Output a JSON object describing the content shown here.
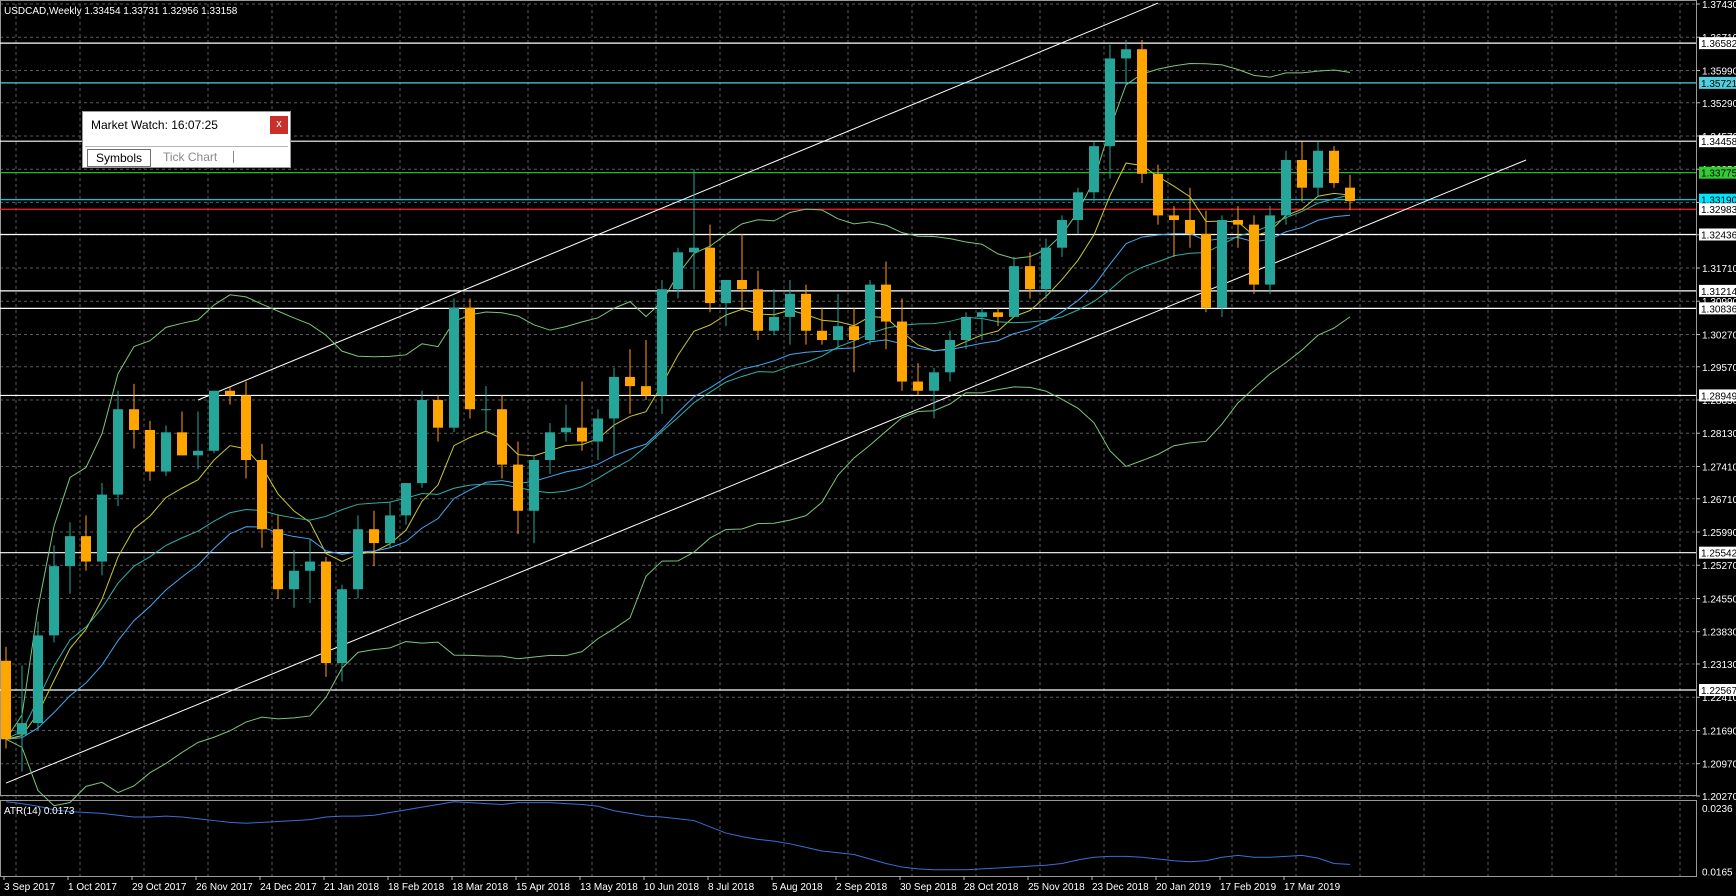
{
  "chart_data": [
    {
      "type": "candlestick",
      "symbol": "USDCAD,Weekly",
      "title_ohlc": "1.33454 1.33731 1.32956 1.33158",
      "ylim": [
        1.2027,
        1.3743
      ],
      "y_ticks": [
        "1.37430",
        "1.36710",
        "1.35990",
        "1.35290",
        "1.34570",
        "1.33850",
        "1.33130",
        "1.32430",
        "1.31710",
        "1.30990",
        "1.30270",
        "1.29570",
        "1.28850",
        "1.28130",
        "1.27410",
        "1.26710",
        "1.25990",
        "1.25270",
        "1.24550",
        "1.23830",
        "1.23130",
        "1.22410",
        "1.21690",
        "1.20970",
        "1.20270"
      ],
      "y_tick_values": [
        1.3743,
        1.3671,
        1.3599,
        1.3529,
        1.3457,
        1.3385,
        1.3313,
        1.3243,
        1.3171,
        1.3099,
        1.3027,
        1.2957,
        1.2885,
        1.2813,
        1.2741,
        1.2671,
        1.2599,
        1.2527,
        1.2455,
        1.2383,
        1.2313,
        1.2241,
        1.2169,
        1.2097,
        1.2027
      ],
      "x_tick_labels": [
        "3 Sep 2017",
        "1 Oct 2017",
        "29 Oct 2017",
        "26 Nov 2017",
        "24 Dec 2017",
        "21 Jan 2018",
        "18 Feb 2018",
        "18 Mar 2018",
        "15 Apr 2018",
        "13 May 2018",
        "10 Jun 2018",
        "8 Jul 2018",
        "5 Aug 2018",
        "2 Sep 2018",
        "30 Sep 2018",
        "28 Oct 2018",
        "25 Nov 2018",
        "23 Dec 2018",
        "20 Jan 2019",
        "17 Feb 2019",
        "17 Mar 2019"
      ],
      "candles": [
        {
          "o": 1.232,
          "h": 1.235,
          "l": 1.213,
          "c": 1.215
        },
        {
          "o": 1.216,
          "h": 1.231,
          "l": 1.208,
          "c": 1.2185
        },
        {
          "o": 1.2185,
          "h": 1.2405,
          "l": 1.217,
          "c": 1.2375
        },
        {
          "o": 1.2375,
          "h": 1.257,
          "l": 1.236,
          "c": 1.2525
        },
        {
          "o": 1.2525,
          "h": 1.262,
          "l": 1.2465,
          "c": 1.259
        },
        {
          "o": 1.259,
          "h": 1.2635,
          "l": 1.2515,
          "c": 1.2535
        },
        {
          "o": 1.2535,
          "h": 1.2705,
          "l": 1.2505,
          "c": 1.268
        },
        {
          "o": 1.268,
          "h": 1.2905,
          "l": 1.2655,
          "c": 1.2865
        },
        {
          "o": 1.2865,
          "h": 1.292,
          "l": 1.278,
          "c": 1.282
        },
        {
          "o": 1.282,
          "h": 1.284,
          "l": 1.271,
          "c": 1.273
        },
        {
          "o": 1.273,
          "h": 1.283,
          "l": 1.272,
          "c": 1.2815
        },
        {
          "o": 1.2815,
          "h": 1.286,
          "l": 1.2765,
          "c": 1.2765
        },
        {
          "o": 1.2765,
          "h": 1.286,
          "l": 1.2735,
          "c": 1.2775
        },
        {
          "o": 1.2775,
          "h": 1.2895,
          "l": 1.277,
          "c": 1.2905
        },
        {
          "o": 1.2905,
          "h": 1.2915,
          "l": 1.2875,
          "c": 1.2895
        },
        {
          "o": 1.2895,
          "h": 1.2925,
          "l": 1.2715,
          "c": 1.2755
        },
        {
          "o": 1.2755,
          "h": 1.279,
          "l": 1.2565,
          "c": 1.2605
        },
        {
          "o": 1.2605,
          "h": 1.2635,
          "l": 1.2455,
          "c": 1.2475
        },
        {
          "o": 1.2475,
          "h": 1.256,
          "l": 1.2435,
          "c": 1.2515
        },
        {
          "o": 1.2515,
          "h": 1.2585,
          "l": 1.2445,
          "c": 1.2535
        },
        {
          "o": 1.2535,
          "h": 1.2545,
          "l": 1.2285,
          "c": 1.2315
        },
        {
          "o": 1.2315,
          "h": 1.2485,
          "l": 1.2275,
          "c": 1.2475
        },
        {
          "o": 1.2475,
          "h": 1.2635,
          "l": 1.2455,
          "c": 1.2605
        },
        {
          "o": 1.2605,
          "h": 1.2645,
          "l": 1.2525,
          "c": 1.2575
        },
        {
          "o": 1.2575,
          "h": 1.2665,
          "l": 1.2565,
          "c": 1.2635
        },
        {
          "o": 1.2635,
          "h": 1.2705,
          "l": 1.2615,
          "c": 1.2705
        },
        {
          "o": 1.2705,
          "h": 1.2905,
          "l": 1.2695,
          "c": 1.2885
        },
        {
          "o": 1.2885,
          "h": 1.2895,
          "l": 1.2795,
          "c": 1.2825
        },
        {
          "o": 1.2825,
          "h": 1.3105,
          "l": 1.2815,
          "c": 1.3085
        },
        {
          "o": 1.3085,
          "h": 1.3105,
          "l": 1.2845,
          "c": 1.2865
        },
        {
          "o": 1.2865,
          "h": 1.2915,
          "l": 1.2815,
          "c": 1.2865
        },
        {
          "o": 1.2865,
          "h": 1.2895,
          "l": 1.2715,
          "c": 1.2745
        },
        {
          "o": 1.2745,
          "h": 1.2795,
          "l": 1.2595,
          "c": 1.2645
        },
        {
          "o": 1.2645,
          "h": 1.2765,
          "l": 1.2575,
          "c": 1.2755
        },
        {
          "o": 1.2755,
          "h": 1.2835,
          "l": 1.2725,
          "c": 1.2815
        },
        {
          "o": 1.2815,
          "h": 1.2875,
          "l": 1.2795,
          "c": 1.2825
        },
        {
          "o": 1.2825,
          "h": 1.2925,
          "l": 1.2775,
          "c": 1.2795
        },
        {
          "o": 1.2795,
          "h": 1.2865,
          "l": 1.2755,
          "c": 1.2845
        },
        {
          "o": 1.2845,
          "h": 1.2955,
          "l": 1.2765,
          "c": 1.2935
        },
        {
          "o": 1.2935,
          "h": 1.2995,
          "l": 1.2855,
          "c": 1.2915
        },
        {
          "o": 1.2915,
          "h": 1.3015,
          "l": 1.2885,
          "c": 1.2895
        },
        {
          "o": 1.2895,
          "h": 1.3145,
          "l": 1.2855,
          "c": 1.3125
        },
        {
          "o": 1.3125,
          "h": 1.3215,
          "l": 1.3105,
          "c": 1.3205
        },
        {
          "o": 1.3205,
          "h": 1.3385,
          "l": 1.3125,
          "c": 1.3215
        },
        {
          "o": 1.3215,
          "h": 1.3265,
          "l": 1.3075,
          "c": 1.3095
        },
        {
          "o": 1.3095,
          "h": 1.3145,
          "l": 1.3045,
          "c": 1.3145
        },
        {
          "o": 1.3145,
          "h": 1.3245,
          "l": 1.3085,
          "c": 1.3125
        },
        {
          "o": 1.3125,
          "h": 1.3165,
          "l": 1.3015,
          "c": 1.3035
        },
        {
          "o": 1.3035,
          "h": 1.3125,
          "l": 1.3025,
          "c": 1.3065
        },
        {
          "o": 1.3065,
          "h": 1.3145,
          "l": 1.3005,
          "c": 1.3115
        },
        {
          "o": 1.3115,
          "h": 1.3135,
          "l": 1.3005,
          "c": 1.3035
        },
        {
          "o": 1.3035,
          "h": 1.3085,
          "l": 1.3005,
          "c": 1.3015
        },
        {
          "o": 1.3015,
          "h": 1.3115,
          "l": 1.2995,
          "c": 1.3045
        },
        {
          "o": 1.3045,
          "h": 1.3085,
          "l": 1.2945,
          "c": 1.3015
        },
        {
          "o": 1.3015,
          "h": 1.3145,
          "l": 1.3005,
          "c": 1.3135
        },
        {
          "o": 1.3135,
          "h": 1.3185,
          "l": 1.2995,
          "c": 1.3055
        },
        {
          "o": 1.3055,
          "h": 1.3105,
          "l": 1.2905,
          "c": 1.2925
        },
        {
          "o": 1.2925,
          "h": 1.2965,
          "l": 1.2895,
          "c": 1.2905
        },
        {
          "o": 1.2905,
          "h": 1.2955,
          "l": 1.2845,
          "c": 1.2945
        },
        {
          "o": 1.2945,
          "h": 1.3035,
          "l": 1.2925,
          "c": 1.3015
        },
        {
          "o": 1.3015,
          "h": 1.3075,
          "l": 1.2995,
          "c": 1.3065
        },
        {
          "o": 1.3065,
          "h": 1.3085,
          "l": 1.3015,
          "c": 1.3075
        },
        {
          "o": 1.3075,
          "h": 1.3085,
          "l": 1.3045,
          "c": 1.3065
        },
        {
          "o": 1.3065,
          "h": 1.3195,
          "l": 1.3065,
          "c": 1.3175
        },
        {
          "o": 1.3175,
          "h": 1.3205,
          "l": 1.3105,
          "c": 1.3125
        },
        {
          "o": 1.3125,
          "h": 1.3235,
          "l": 1.3105,
          "c": 1.3215
        },
        {
          "o": 1.3215,
          "h": 1.3285,
          "l": 1.3195,
          "c": 1.3275
        },
        {
          "o": 1.3275,
          "h": 1.3345,
          "l": 1.3245,
          "c": 1.3335
        },
        {
          "o": 1.3335,
          "h": 1.3445,
          "l": 1.3315,
          "c": 1.3435
        },
        {
          "o": 1.3435,
          "h": 1.3655,
          "l": 1.3365,
          "c": 1.3625
        },
        {
          "o": 1.3625,
          "h": 1.3665,
          "l": 1.3565,
          "c": 1.3645
        },
        {
          "o": 1.3645,
          "h": 1.3665,
          "l": 1.3355,
          "c": 1.3375
        },
        {
          "o": 1.3375,
          "h": 1.3395,
          "l": 1.3265,
          "c": 1.3285
        },
        {
          "o": 1.3285,
          "h": 1.3305,
          "l": 1.3195,
          "c": 1.3275
        },
        {
          "o": 1.3275,
          "h": 1.3345,
          "l": 1.3215,
          "c": 1.3245
        },
        {
          "o": 1.3245,
          "h": 1.3295,
          "l": 1.3075,
          "c": 1.3085
        },
        {
          "o": 1.3085,
          "h": 1.3285,
          "l": 1.3065,
          "c": 1.3275
        },
        {
          "o": 1.3275,
          "h": 1.3305,
          "l": 1.3215,
          "c": 1.3265
        },
        {
          "o": 1.3265,
          "h": 1.3285,
          "l": 1.3115,
          "c": 1.3135
        },
        {
          "o": 1.3135,
          "h": 1.3305,
          "l": 1.3115,
          "c": 1.3285
        },
        {
          "o": 1.3285,
          "h": 1.3425,
          "l": 1.3265,
          "c": 1.3405
        },
        {
          "o": 1.3405,
          "h": 1.3445,
          "l": 1.3315,
          "c": 1.3345
        },
        {
          "o": 1.3345,
          "h": 1.3445,
          "l": 1.3325,
          "c": 1.3425
        },
        {
          "o": 1.3425,
          "h": 1.3435,
          "l": 1.3345,
          "c": 1.3355
        },
        {
          "o": 1.3345,
          "h": 1.3373,
          "l": 1.3296,
          "c": 1.3316
        }
      ],
      "up_color": "#26a69a",
      "down_color": "#ffa500",
      "price_levels": [
        {
          "label": "1.36582",
          "value": 1.36582,
          "color": "#ffffff",
          "label_bg": "#ffffff",
          "label_color": "#000000"
        },
        {
          "label": "1.35721",
          "value": 1.35721,
          "color": "#4fd0e0",
          "label_bg": "#4fd0e0",
          "label_color": "#000000"
        },
        {
          "label": "1.34458",
          "value": 1.34458,
          "color": "#ffffff",
          "label_bg": "#ffffff",
          "label_color": "#000000"
        },
        {
          "label": "1.33775",
          "value": 1.33775,
          "color": "#32cd32",
          "label_bg": "#32cd32",
          "label_color": "#000000"
        },
        {
          "label": "1.33190",
          "value": 1.3319,
          "color": "#00e5ff",
          "label_bg": "#00e5ff",
          "label_color": "#000000"
        },
        {
          "label": "1.32983",
          "value": 1.32983,
          "color": "#ff2020",
          "label_bg": "#ffffff",
          "label_color": "#000000"
        },
        {
          "label": "1.32436",
          "value": 1.32436,
          "color": "#ffffff",
          "label_bg": "#ffffff",
          "label_color": "#000000"
        },
        {
          "label": "1.31214",
          "value": 1.31214,
          "color": "#ffffff",
          "label_bg": "#ffffff",
          "label_color": "#000000"
        },
        {
          "label": "1.30836",
          "value": 1.30836,
          "color": "#ffffff",
          "label_bg": "#ffffff",
          "label_color": "#000000"
        },
        {
          "label": "1.28949",
          "value": 1.28949,
          "color": "#ffffff",
          "label_bg": "#ffffff",
          "label_color": "#000000"
        },
        {
          "label": "1.25542",
          "value": 1.25542,
          "color": "#ffffff",
          "label_bg": "#ffffff",
          "label_color": "#000000"
        },
        {
          "label": "1.22567",
          "value": 1.22567,
          "color": "#ffffff",
          "label_bg": "#ffffff",
          "label_color": "#000000"
        }
      ],
      "channel_lines": [
        {
          "from": [
            0,
            1.2055
          ],
          "to": [
            95,
            1.3405
          ]
        },
        {
          "from": [
            12,
            1.2885
          ],
          "to": [
            72,
            1.3745
          ]
        }
      ],
      "grid": true,
      "background": "#000000",
      "grid_color": "#5a5a5a"
    },
    {
      "type": "line",
      "title": "ATR(14) 0.0173",
      "y_ticks": [
        "0.0236",
        "0.0165"
      ],
      "y_tick_values": [
        0.0236,
        0.0165
      ],
      "ylim": [
        0.016,
        0.0245
      ],
      "series": [
        {
          "color": "#3a6fd8",
          "values": [
            0.0243,
            0.0241,
            0.0238,
            0.0234,
            0.0232,
            0.0231,
            0.023,
            0.0228,
            0.0226,
            0.0226,
            0.0227,
            0.0226,
            0.0224,
            0.0222,
            0.022,
            0.0219,
            0.022,
            0.0221,
            0.0222,
            0.0223,
            0.0226,
            0.0227,
            0.0227,
            0.0228,
            0.0231,
            0.0234,
            0.0237,
            0.024,
            0.0243,
            0.0242,
            0.0241,
            0.024,
            0.0242,
            0.0242,
            0.0242,
            0.0241,
            0.024,
            0.0238,
            0.0233,
            0.023,
            0.0227,
            0.0226,
            0.0224,
            0.0222,
            0.0215,
            0.0208,
            0.0204,
            0.0201,
            0.0199,
            0.0196,
            0.0192,
            0.0188,
            0.0186,
            0.0184,
            0.0179,
            0.0174,
            0.017,
            0.0168,
            0.0167,
            0.0167,
            0.0167,
            0.0168,
            0.0169,
            0.017,
            0.0171,
            0.0172,
            0.0174,
            0.0178,
            0.0181,
            0.0182,
            0.0182,
            0.0181,
            0.0179,
            0.0177,
            0.0176,
            0.0177,
            0.0181,
            0.0183,
            0.0181,
            0.0181,
            0.0182,
            0.0183,
            0.018,
            0.0174,
            0.0173
          ]
        }
      ]
    }
  ],
  "market_watch": {
    "title": "Market Watch: 16:07:25",
    "close_label": "x",
    "tabs": [
      "Symbols",
      "Tick Chart"
    ]
  }
}
